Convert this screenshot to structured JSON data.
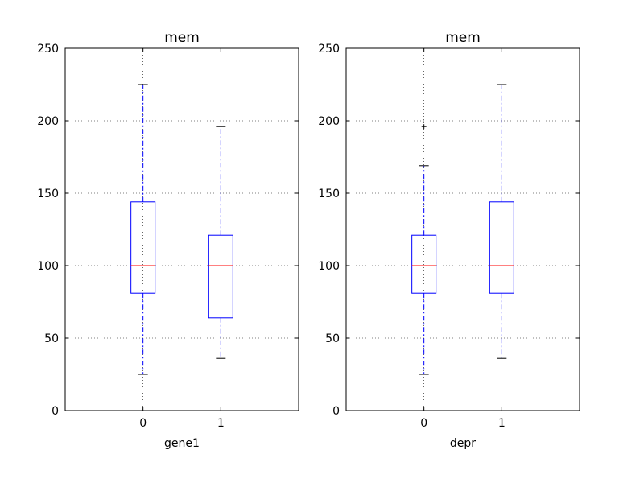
{
  "chart_data": [
    {
      "type": "box",
      "title": "mem",
      "xlabel": "gene1",
      "ylabel": "",
      "ylim": [
        0,
        250
      ],
      "yticks": [
        "0",
        "50",
        "100",
        "150",
        "200",
        "250"
      ],
      "categories": [
        "0",
        "1"
      ],
      "boxes": [
        {
          "whisker_low": 25,
          "q1": 81,
          "median": 100,
          "q3": 144,
          "whisker_high": 225,
          "outliers": []
        },
        {
          "whisker_low": 36,
          "q1": 64,
          "median": 100,
          "q3": 121,
          "whisker_high": 196,
          "outliers": []
        }
      ],
      "grid": true
    },
    {
      "type": "box",
      "title": "mem",
      "xlabel": "depr",
      "ylabel": "",
      "ylim": [
        0,
        250
      ],
      "yticks": [
        "0",
        "50",
        "100",
        "150",
        "200",
        "250"
      ],
      "categories": [
        "0",
        "1"
      ],
      "boxes": [
        {
          "whisker_low": 25,
          "q1": 81,
          "median": 100,
          "q3": 121,
          "whisker_high": 169,
          "outliers": [
            196
          ]
        },
        {
          "whisker_low": 36,
          "q1": 81,
          "median": 100,
          "q3": 144,
          "whisker_high": 225,
          "outliers": []
        }
      ],
      "grid": true
    }
  ],
  "colors": {
    "box": "#0000ff",
    "whisker": "#0000ff",
    "median": "#ff0000",
    "cap": "#000000",
    "grid": "#000000",
    "axes": "#000000"
  }
}
